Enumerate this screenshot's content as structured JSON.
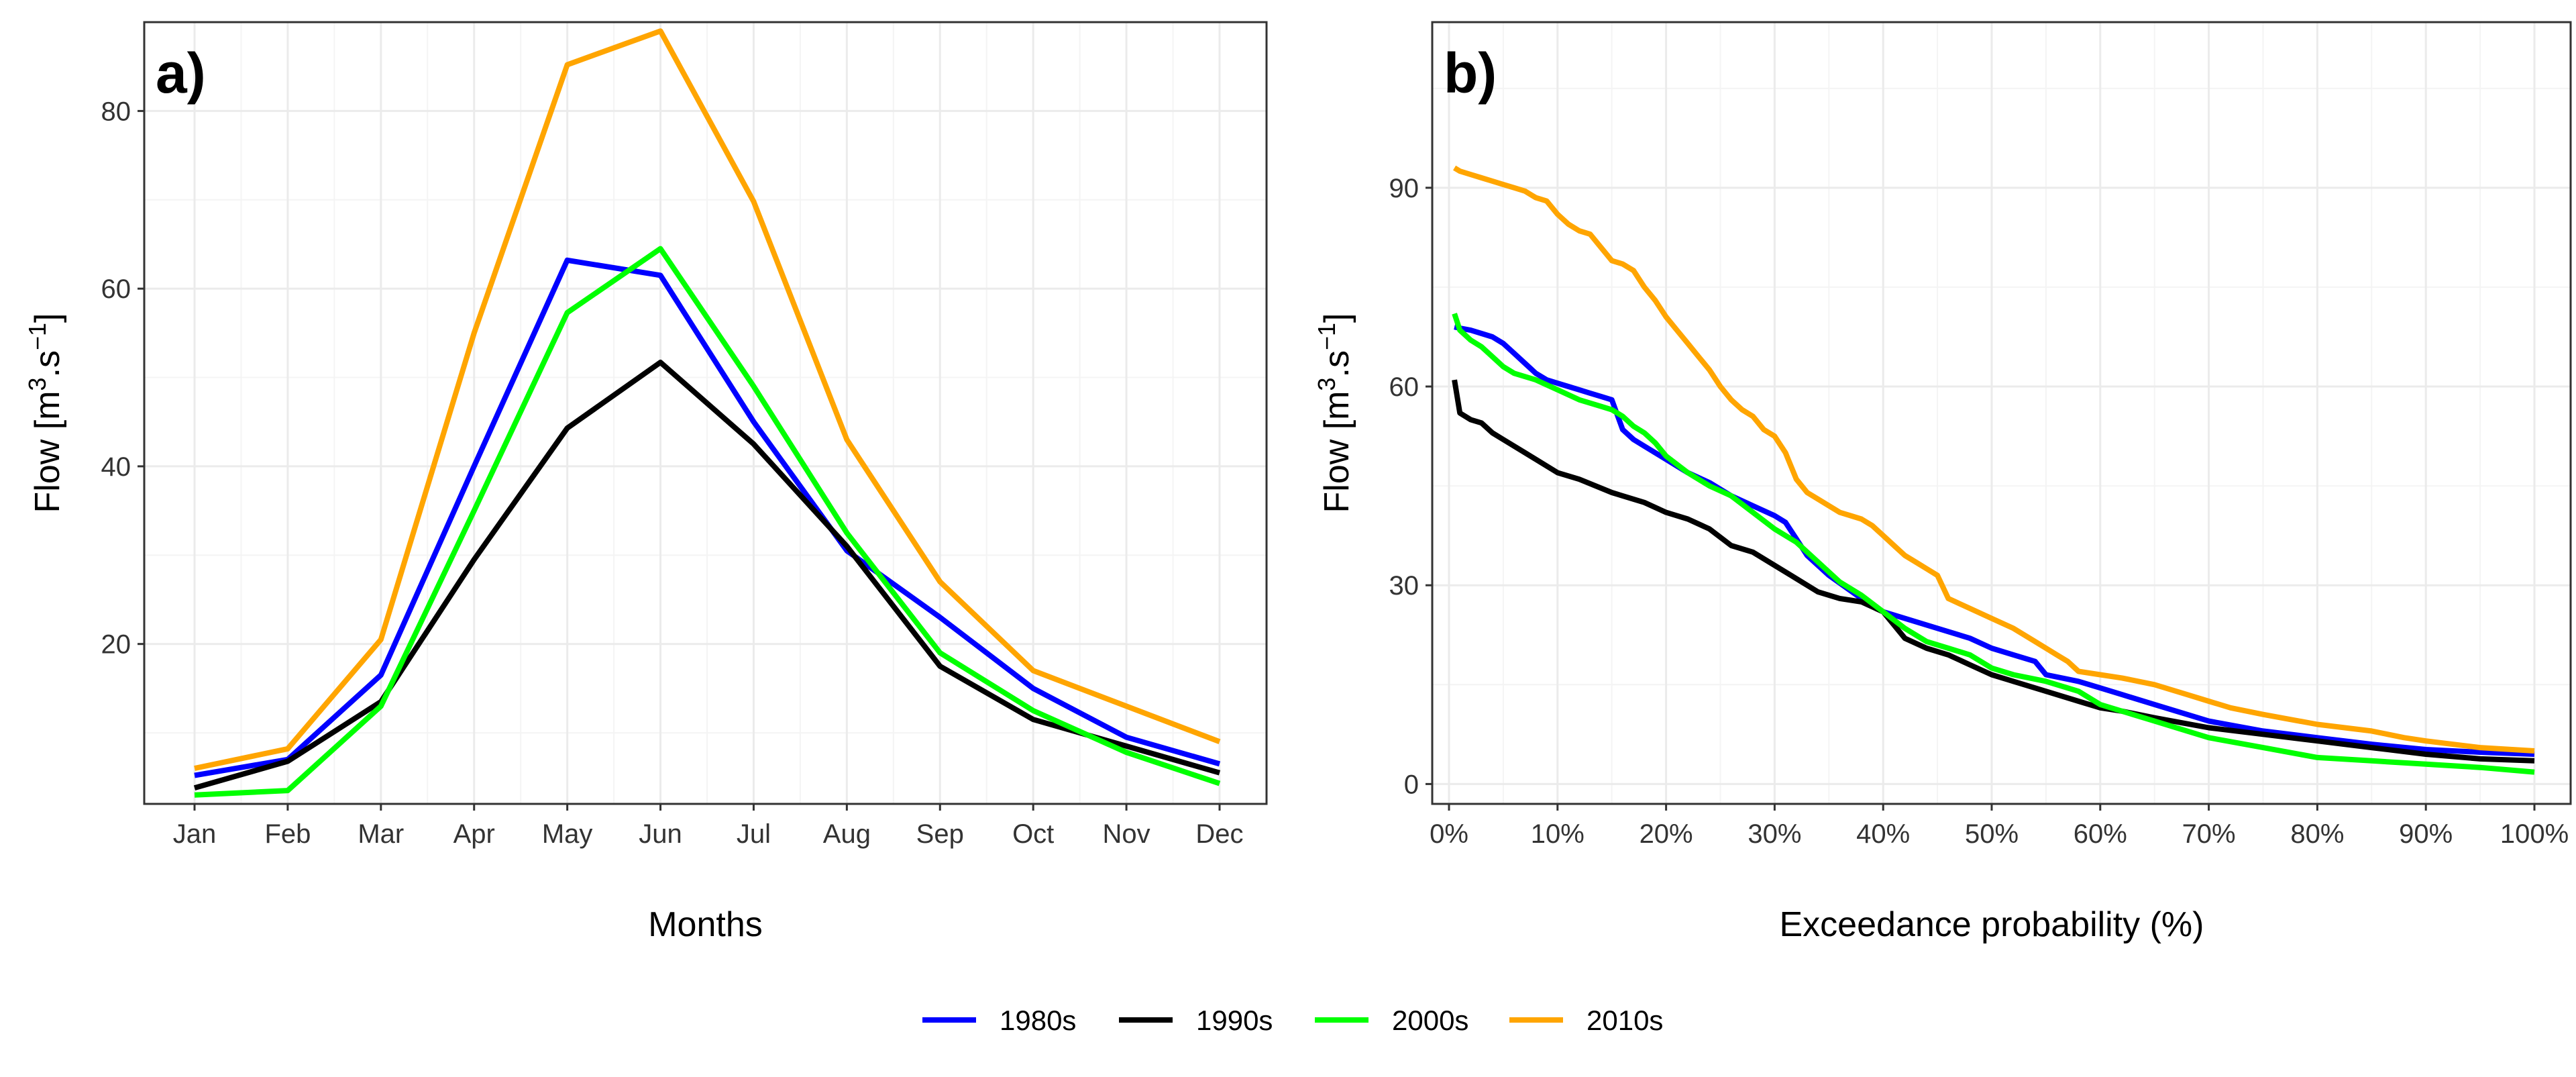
{
  "chart_data": [
    {
      "type": "line",
      "panel_label": "a)",
      "xlabel": "Months",
      "ylabel_main": "Flow [m",
      "ylabel_sup1": "3",
      "ylabel_mid": ".s",
      "ylabel_sup2": "−1",
      "ylabel_end": "]",
      "categories": [
        "Jan",
        "Feb",
        "Mar",
        "Apr",
        "May",
        "Jun",
        "Jul",
        "Aug",
        "Sep",
        "Oct",
        "Nov",
        "Dec"
      ],
      "yticks": [
        20,
        40,
        60,
        80
      ],
      "ylim": [
        2,
        90
      ],
      "grid": true,
      "series": [
        {
          "name": "1980s",
          "color": "#0000ff",
          "values": [
            5.2,
            7.0,
            16.5,
            40.0,
            63.2,
            61.5,
            45.0,
            30.5,
            23.0,
            15.0,
            9.5,
            6.5
          ]
        },
        {
          "name": "1990s",
          "color": "#000000",
          "values": [
            3.8,
            6.8,
            13.5,
            29.5,
            44.3,
            51.7,
            42.5,
            31.0,
            17.5,
            11.5,
            8.5,
            5.5
          ]
        },
        {
          "name": "2000s",
          "color": "#00ff00",
          "values": [
            3.0,
            3.5,
            13.0,
            35.0,
            57.3,
            64.5,
            49.0,
            32.5,
            19.0,
            12.5,
            7.8,
            4.3
          ]
        },
        {
          "name": "2010s",
          "color": "#ffa500",
          "values": [
            6.0,
            8.2,
            20.5,
            55.0,
            85.2,
            89.0,
            69.8,
            43.0,
            27.0,
            17.0,
            13.0,
            9.0
          ]
        }
      ]
    },
    {
      "type": "line",
      "panel_label": "b)",
      "xlabel": "Exceedance probability (%)",
      "ylabel_main": "Flow [m",
      "ylabel_sup1": "3",
      "ylabel_mid": ".s",
      "ylabel_sup2": "−1",
      "ylabel_end": "]",
      "xticks": [
        0,
        10,
        20,
        30,
        40,
        50,
        60,
        70,
        80,
        90,
        100
      ],
      "xtick_labels": [
        "0%",
        "10%",
        "20%",
        "30%",
        "40%",
        "50%",
        "60%",
        "70%",
        "80%",
        "90%",
        "100%"
      ],
      "yticks": [
        0,
        30,
        60,
        90
      ],
      "xlim": [
        0,
        100
      ],
      "ylim": [
        -3,
        115
      ],
      "grid": true,
      "series": [
        {
          "name": "1980s",
          "color": "#0000ff",
          "x": [
            0.5,
            1,
            2,
            3,
            4,
            5,
            6,
            7,
            8,
            9,
            10,
            11,
            12,
            13,
            14,
            15,
            16,
            17,
            18,
            20,
            22,
            24,
            26,
            28,
            30,
            31,
            32,
            33,
            35,
            38,
            40,
            42,
            44,
            46,
            48,
            50,
            52,
            54,
            55,
            58,
            60,
            62,
            65,
            68,
            70,
            75,
            80,
            85,
            90,
            95,
            100
          ],
          "y": [
            69,
            68.8,
            68.5,
            68,
            67.5,
            66.5,
            65,
            63.5,
            62,
            61,
            60.5,
            60,
            59.5,
            59,
            58.5,
            58,
            53.5,
            52,
            51,
            49,
            47,
            45.5,
            43.5,
            42,
            40.5,
            39.5,
            37,
            34.5,
            31.5,
            28,
            26,
            25,
            24,
            23,
            22,
            20.5,
            19.5,
            18.5,
            16.5,
            15.5,
            14.5,
            13.5,
            12,
            10.5,
            9.5,
            8,
            7,
            6,
            5.2,
            4.8,
            4.5
          ]
        },
        {
          "name": "1990s",
          "color": "#000000",
          "x": [
            0.5,
            1,
            2,
            3,
            4,
            5,
            7,
            10,
            12,
            15,
            18,
            20,
            22,
            24,
            26,
            28,
            30,
            32,
            34,
            36,
            38,
            40,
            42,
            44,
            46,
            48,
            50,
            52,
            55,
            58,
            60,
            62,
            65,
            70,
            75,
            80,
            85,
            90,
            95,
            100
          ],
          "y": [
            61,
            56,
            55,
            54.5,
            53,
            52,
            50,
            47,
            46,
            44,
            42.5,
            41,
            40,
            38.5,
            36,
            35,
            33,
            31,
            29,
            28,
            27.5,
            26,
            22,
            20.5,
            19.5,
            18,
            16.5,
            15.5,
            14,
            12.5,
            11.5,
            11,
            10,
            8.5,
            7.5,
            6.5,
            5.5,
            4.5,
            3.8,
            3.5
          ]
        },
        {
          "name": "2000s",
          "color": "#00ff00",
          "x": [
            0.5,
            1,
            2,
            3,
            4,
            5,
            6,
            8,
            10,
            12,
            14,
            15,
            16,
            17,
            18,
            19,
            20,
            22,
            24,
            26,
            28,
            30,
            32,
            34,
            36,
            38,
            40,
            42,
            44,
            46,
            48,
            50,
            52,
            55,
            58,
            60,
            62,
            65,
            68,
            70,
            75,
            80,
            85,
            90,
            95,
            100
          ],
          "y": [
            71,
            68.5,
            67,
            66,
            64.5,
            63,
            62,
            61,
            59.5,
            58,
            57,
            56.5,
            55.5,
            54,
            53,
            51.5,
            49.5,
            47,
            45,
            43.5,
            41,
            38.5,
            36.5,
            33.5,
            30.5,
            28.5,
            26,
            23.5,
            21.5,
            20.5,
            19.5,
            17.5,
            16.5,
            15.5,
            14,
            12,
            11,
            9.5,
            8,
            7,
            5.5,
            4,
            3.5,
            3,
            2.5,
            1.8
          ]
        },
        {
          "name": "2010s",
          "color": "#ffa500",
          "x": [
            0.5,
            1,
            2,
            3,
            4,
            5,
            6,
            7,
            8,
            9,
            10,
            11,
            12,
            13,
            14,
            15,
            16,
            17,
            18,
            19,
            20,
            21,
            22,
            23,
            24,
            25,
            26,
            27,
            28,
            29,
            30,
            31,
            32,
            33,
            34,
            35,
            36,
            37,
            38,
            39,
            40,
            41,
            42,
            43,
            44,
            45,
            46,
            48,
            50,
            52,
            54,
            56,
            57,
            58,
            60,
            62,
            65,
            68,
            70,
            72,
            75,
            80,
            85,
            88,
            90,
            95,
            100
          ],
          "y": [
            93,
            92.5,
            92,
            91.5,
            91,
            90.5,
            90,
            89.5,
            88.5,
            88,
            86,
            84.5,
            83.5,
            83,
            81,
            79,
            78.5,
            77.5,
            75,
            73,
            70.5,
            68.5,
            66.5,
            64.5,
            62.5,
            60,
            58,
            56.5,
            55.5,
            53.5,
            52.5,
            50,
            46,
            44,
            43,
            42,
            41,
            40.5,
            40,
            39,
            37.5,
            36,
            34.5,
            33.5,
            32.5,
            31.5,
            28,
            26.5,
            25,
            23.5,
            21.5,
            19.5,
            18.5,
            17,
            16.5,
            16,
            15,
            13.5,
            12.5,
            11.5,
            10.5,
            9,
            8,
            7,
            6.5,
            5.5,
            5
          ]
        }
      ]
    }
  ],
  "legend": {
    "position": "bottom",
    "items": [
      {
        "label": "1980s",
        "color": "#0000ff"
      },
      {
        "label": "1990s",
        "color": "#000000"
      },
      {
        "label": "2000s",
        "color": "#00ff00"
      },
      {
        "label": "2010s",
        "color": "#ffa500"
      }
    ]
  }
}
